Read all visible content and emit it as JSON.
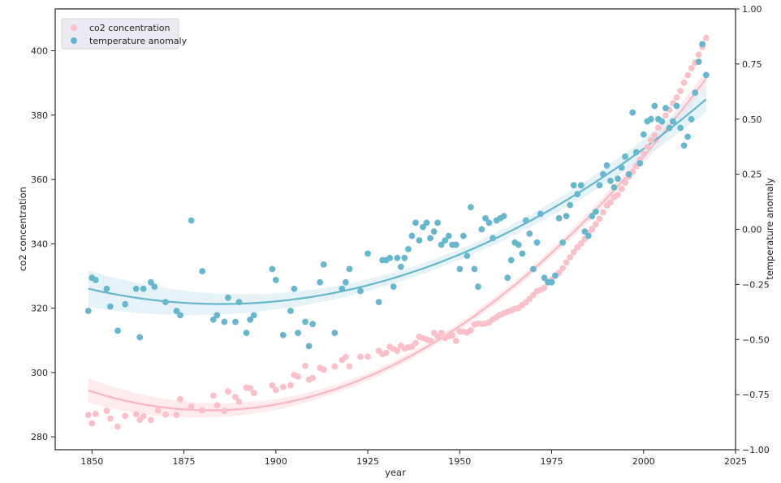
{
  "chart_data": {
    "type": "scatter",
    "xlabel": "year",
    "ylabel": "co2 concentration",
    "y2label": "temperature anomaly",
    "xlim": [
      1840,
      2025
    ],
    "ylim": [
      276,
      413
    ],
    "y2lim": [
      -1.0,
      1.0
    ],
    "x_ticks": [
      1850,
      1875,
      1900,
      1925,
      1950,
      1975,
      2000,
      2025
    ],
    "y_ticks": [
      280,
      300,
      320,
      340,
      360,
      380,
      400
    ],
    "y2_ticks": [
      -1.0,
      -0.75,
      -0.5,
      -0.25,
      0.0,
      0.25,
      0.5,
      0.75,
      1.0
    ],
    "y2_tick_labels": [
      "−1.00",
      "−0.75",
      "−0.50",
      "−0.25",
      "0.00",
      "0.25",
      "0.50",
      "0.75",
      "1.00"
    ],
    "legend_position": "top-left",
    "grid": false,
    "series": [
      {
        "name": "co2 concentration",
        "axis": "left",
        "color": "#f9c0c9",
        "line_color": "#f7b6c1",
        "band_color": "#fde4e8",
        "x": [
          1849,
          1850,
          1851,
          1854,
          1855,
          1857,
          1859,
          1862,
          1863,
          1864,
          1866,
          1868,
          1870,
          1873,
          1874,
          1877,
          1880,
          1883,
          1884,
          1886,
          1887,
          1889,
          1890,
          1892,
          1893,
          1894,
          1899,
          1900,
          1902,
          1904,
          1905,
          1906,
          1908,
          1909,
          1910,
          1912,
          1913,
          1916,
          1918,
          1919,
          1920,
          1923,
          1925,
          1928,
          1929,
          1930,
          1931,
          1932,
          1933,
          1934,
          1935,
          1936,
          1937,
          1938,
          1939,
          1940,
          1941,
          1942,
          1943,
          1944,
          1945,
          1946,
          1947,
          1948,
          1949,
          1950,
          1951,
          1952,
          1953,
          1954,
          1955,
          1956,
          1957,
          1958,
          1959,
          1960,
          1961,
          1962,
          1963,
          1964,
          1965,
          1966,
          1967,
          1968,
          1969,
          1970,
          1971,
          1972,
          1973,
          1974,
          1975,
          1976,
          1977,
          1978,
          1979,
          1980,
          1981,
          1982,
          1983,
          1984,
          1985,
          1986,
          1987,
          1988,
          1989,
          1990,
          1991,
          1992,
          1993,
          1994,
          1995,
          1996,
          1997,
          1998,
          1999,
          2000,
          2001,
          2002,
          2003,
          2004,
          2005,
          2006,
          2007,
          2008,
          2009,
          2010,
          2011,
          2012,
          2013,
          2014,
          2015,
          2016,
          2017
        ],
        "values": [
          286.8,
          284.2,
          287.1,
          288.1,
          285.7,
          283.2,
          286.5,
          287.0,
          285.3,
          286.4,
          285.2,
          288.2,
          286.9,
          286.8,
          291.7,
          289.4,
          288.2,
          292.8,
          289.8,
          288.1,
          294.1,
          292.4,
          290.9,
          295.3,
          295.1,
          293.6,
          296.0,
          294.6,
          295.5,
          296.0,
          299.2,
          298.7,
          302.0,
          297.8,
          298.3,
          301.4,
          300.9,
          301.9,
          303.9,
          304.8,
          301.9,
          304.9,
          305.0,
          306.7,
          305.7,
          306.1,
          308.0,
          307.3,
          306.7,
          308.3,
          307.4,
          307.8,
          308.0,
          309.1,
          311.1,
          310.7,
          310.3,
          309.9,
          312.3,
          311.2,
          312.3,
          310.7,
          311.3,
          311.5,
          309.8,
          312.8,
          312.7,
          312.4,
          313.1,
          314.9,
          315.2,
          315.1,
          315.2,
          315.6,
          316.5,
          317.2,
          317.9,
          318.4,
          318.9,
          319.3,
          319.8,
          320.1,
          321.0,
          321.8,
          322.9,
          324.1,
          325.3,
          325.7,
          326.3,
          328.1,
          328.9,
          330.2,
          331.0,
          332.4,
          334.2,
          335.8,
          337.4,
          338.9,
          340.1,
          341.5,
          343.3,
          344.6,
          346.1,
          347.8,
          349.8,
          351.9,
          352.9,
          354.5,
          355.2,
          357.1,
          359.0,
          360.9,
          362.3,
          364.2,
          366.1,
          368.0,
          370.1,
          372.2,
          373.7,
          376.1,
          377.9,
          379.9,
          381.7,
          383.7,
          385.5,
          387.5,
          390.1,
          392.4,
          394.6,
          396.3,
          398.8,
          401.2,
          404.0
        ]
      },
      {
        "name": "temperature anomaly",
        "axis": "right",
        "color": "#66b6cc",
        "line_color": "#66b6cc",
        "band_color": "#dcedf3",
        "x": [
          1849,
          1850,
          1851,
          1854,
          1855,
          1857,
          1859,
          1862,
          1863,
          1864,
          1866,
          1867,
          1870,
          1873,
          1874,
          1877,
          1880,
          1883,
          1884,
          1886,
          1887,
          1889,
          1890,
          1892,
          1893,
          1894,
          1899,
          1900,
          1902,
          1904,
          1905,
          1906,
          1908,
          1909,
          1910,
          1912,
          1913,
          1916,
          1918,
          1919,
          1920,
          1923,
          1925,
          1928,
          1929,
          1930,
          1931,
          1932,
          1933,
          1934,
          1935,
          1936,
          1937,
          1938,
          1939,
          1940,
          1941,
          1942,
          1943,
          1944,
          1945,
          1946,
          1947,
          1948,
          1949,
          1950,
          1951,
          1952,
          1953,
          1954,
          1955,
          1956,
          1957,
          1958,
          1959,
          1960,
          1961,
          1962,
          1963,
          1964,
          1965,
          1966,
          1967,
          1968,
          1969,
          1970,
          1971,
          1972,
          1973,
          1974,
          1975,
          1976,
          1977,
          1978,
          1979,
          1980,
          1981,
          1982,
          1983,
          1984,
          1985,
          1986,
          1987,
          1988,
          1989,
          1990,
          1991,
          1992,
          1993,
          1994,
          1995,
          1996,
          1997,
          1998,
          1999,
          2000,
          2001,
          2002,
          2003,
          2004,
          2005,
          2006,
          2007,
          2008,
          2009,
          2010,
          2011,
          2012,
          2013,
          2014,
          2015,
          2016,
          2017
        ],
        "values": [
          -0.37,
          -0.22,
          -0.23,
          -0.27,
          -0.35,
          -0.46,
          -0.34,
          -0.27,
          -0.49,
          -0.27,
          -0.24,
          -0.26,
          -0.33,
          -0.37,
          -0.39,
          0.04,
          -0.19,
          -0.41,
          -0.39,
          -0.42,
          -0.31,
          -0.42,
          -0.33,
          -0.47,
          -0.41,
          -0.39,
          -0.18,
          -0.23,
          -0.48,
          -0.37,
          -0.27,
          -0.47,
          -0.42,
          -0.53,
          -0.43,
          -0.24,
          -0.16,
          -0.47,
          -0.27,
          -0.24,
          -0.18,
          -0.28,
          -0.11,
          -0.33,
          -0.14,
          -0.14,
          -0.13,
          -0.26,
          -0.13,
          -0.17,
          -0.13,
          -0.09,
          -0.03,
          0.03,
          -0.05,
          0.01,
          0.03,
          -0.04,
          -0.01,
          0.03,
          -0.07,
          -0.05,
          -0.03,
          -0.07,
          -0.07,
          -0.18,
          -0.03,
          -0.12,
          0.1,
          -0.18,
          -0.26,
          0.0,
          0.05,
          0.03,
          -0.04,
          0.04,
          0.05,
          0.06,
          -0.22,
          -0.14,
          -0.06,
          -0.07,
          -0.11,
          0.04,
          -0.02,
          -0.18,
          -0.06,
          0.07,
          -0.22,
          -0.24,
          -0.24,
          -0.21,
          0.05,
          -0.06,
          0.06,
          0.11,
          0.2,
          0.16,
          0.2,
          -0.01,
          -0.03,
          0.06,
          0.08,
          0.2,
          0.25,
          0.29,
          0.22,
          0.19,
          0.23,
          0.28,
          0.33,
          0.25,
          0.53,
          0.35,
          0.3,
          0.43,
          0.49,
          0.5,
          0.56,
          0.5,
          0.49,
          0.55,
          0.46,
          0.49,
          0.56,
          0.46,
          0.38,
          0.42,
          0.5,
          0.62,
          0.76,
          0.84,
          0.7
        ]
      }
    ]
  }
}
